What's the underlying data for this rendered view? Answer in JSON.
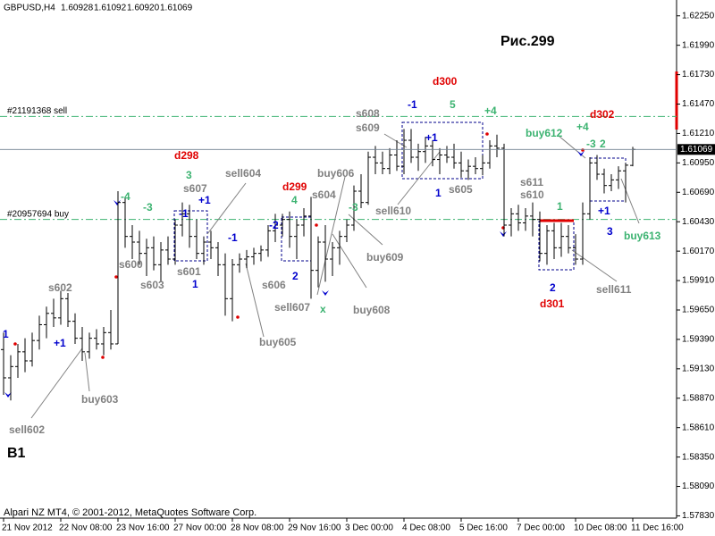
{
  "chart_data": {
    "type": "ohlc",
    "header": {
      "symbol": "GBPUSD,H4",
      "values": [
        "1.60928",
        "1.61092",
        "1.60920",
        "1.61069"
      ]
    },
    "footer": "Alpari NZ MT4, © 2001-2012, MetaQuotes Software Corp.",
    "bar_color": "#000000",
    "categories": [
      "21 Nov 2012",
      null,
      null,
      null,
      null,
      null,
      null,
      null,
      "22 Nov 08:00",
      null,
      null,
      null,
      null,
      null,
      null,
      null,
      "23 Nov 16:00",
      null,
      null,
      null,
      null,
      null,
      null,
      null,
      "27 Nov 00:00",
      null,
      null,
      null,
      null,
      null,
      null,
      null,
      "28 Nov 08:00",
      null,
      null,
      null,
      null,
      null,
      null,
      null,
      "29 Nov 16:00",
      null,
      null,
      null,
      null,
      null,
      null,
      null,
      "3 Dec 00:00",
      null,
      null,
      null,
      null,
      null,
      null,
      null,
      "4 Dec 08:00",
      null,
      null,
      null,
      null,
      null,
      null,
      null,
      "5 Dec 16:00",
      null,
      null,
      null,
      null,
      null,
      null,
      null,
      "7 Dec 00:00",
      null,
      null,
      null,
      null,
      null,
      null,
      null,
      "10 Dec 08:00",
      null,
      null,
      null,
      null,
      null,
      null,
      null,
      "11 Dec 16:00"
    ],
    "open": [
      1.593,
      1.5905,
      1.5915,
      1.5928,
      1.592,
      1.5938,
      1.5952,
      1.5962,
      1.5958,
      1.5975,
      1.5955,
      1.594,
      1.5928,
      1.594,
      1.5935,
      1.5945,
      1.5935,
      1.606,
      1.603,
      1.6025,
      1.6015,
      1.602,
      1.6005,
      1.6018,
      1.601,
      1.604,
      1.605,
      1.603,
      1.6015,
      1.6025,
      1.602,
      1.6005,
      1.5975,
      1.6005,
      1.601,
      1.6012,
      1.6015,
      1.6018,
      1.6035,
      1.604,
      1.6045,
      1.603,
      1.604,
      1.6048,
      1.6,
      1.6025,
      1.601,
      1.602,
      1.603,
      1.604,
      1.607,
      1.606,
      1.61,
      1.6095,
      1.609,
      1.6102,
      1.6092,
      1.6115,
      1.61,
      1.6105,
      1.611,
      1.6098,
      1.6102,
      1.61,
      1.6095,
      1.6088,
      1.6092,
      1.609,
      1.6095,
      1.611,
      1.6108,
      1.604,
      1.605,
      1.6042,
      1.6048,
      1.6045,
      1.6015,
      1.6035,
      1.602,
      1.603,
      1.602,
      1.601,
      1.605,
      1.6095,
      1.6085,
      1.6075,
      1.608,
      1.6088,
      1.60928
    ],
    "high": [
      1.5945,
      1.5925,
      1.5935,
      1.594,
      1.5945,
      1.596,
      1.5968,
      1.5975,
      1.5982,
      1.598,
      1.5962,
      1.595,
      1.5945,
      1.5948,
      1.595,
      1.5965,
      1.607,
      1.6065,
      1.604,
      1.6035,
      1.6028,
      1.603,
      1.6025,
      1.603,
      1.6045,
      1.606,
      1.6058,
      1.6045,
      1.603,
      1.6035,
      1.6025,
      1.6015,
      1.601,
      1.6015,
      1.6018,
      1.602,
      1.6022,
      1.604,
      1.605,
      1.605,
      1.6052,
      1.6045,
      1.6055,
      1.6065,
      1.603,
      1.604,
      1.6025,
      1.6035,
      1.6045,
      1.6075,
      1.6085,
      1.6105,
      1.611,
      1.6105,
      1.6108,
      1.6115,
      1.6125,
      1.6125,
      1.6112,
      1.6118,
      1.6115,
      1.6108,
      1.611,
      1.6112,
      1.6105,
      1.6098,
      1.61,
      1.6102,
      1.6115,
      1.612,
      1.6112,
      1.6055,
      1.6058,
      1.6055,
      1.606,
      1.6052,
      1.604,
      1.6042,
      1.6042,
      1.604,
      1.6032,
      1.606,
      1.61,
      1.6102,
      1.609,
      1.6085,
      1.6092,
      1.6095,
      1.61092
    ],
    "low": [
      1.589,
      1.5885,
      1.5905,
      1.591,
      1.5915,
      1.593,
      1.594,
      1.595,
      1.5952,
      1.595,
      1.5935,
      1.592,
      1.5922,
      1.593,
      1.5925,
      1.593,
      1.5935,
      1.602,
      1.601,
      1.6005,
      1.5995,
      1.6,
      1.599,
      1.6005,
      1.6005,
      1.603,
      1.602,
      1.601,
      1.6005,
      1.601,
      1.5995,
      1.596,
      1.5955,
      1.5998,
      1.6002,
      1.6005,
      1.6008,
      1.6012,
      1.6025,
      1.603,
      1.602,
      1.601,
      1.603,
      1.5975,
      1.5985,
      1.599,
      1.5995,
      1.6005,
      1.6025,
      1.6035,
      1.6055,
      1.6058,
      1.6085,
      1.6085,
      1.6085,
      1.6088,
      1.6085,
      1.6095,
      1.6088,
      1.6095,
      1.6092,
      1.6085,
      1.6095,
      1.609,
      1.6082,
      1.608,
      1.6085,
      1.6084,
      1.609,
      1.61,
      1.603,
      1.603,
      1.6035,
      1.6035,
      1.603,
      1.6008,
      1.6005,
      1.601,
      1.6012,
      1.6015,
      1.6005,
      1.6005,
      1.6045,
      1.608,
      1.6068,
      1.607,
      1.6072,
      1.606,
      1.6092
    ],
    "close": [
      1.5905,
      1.5915,
      1.5928,
      1.592,
      1.5938,
      1.5952,
      1.5962,
      1.5958,
      1.5975,
      1.5955,
      1.594,
      1.5928,
      1.594,
      1.5935,
      1.5945,
      1.5935,
      1.606,
      1.603,
      1.6025,
      1.6015,
      1.602,
      1.6005,
      1.6018,
      1.601,
      1.604,
      1.605,
      1.603,
      1.6015,
      1.6025,
      1.602,
      1.6005,
      1.5975,
      1.6005,
      1.601,
      1.6012,
      1.6015,
      1.6018,
      1.6035,
      1.604,
      1.6045,
      1.603,
      1.604,
      1.6048,
      1.6,
      1.6025,
      1.601,
      1.602,
      1.603,
      1.604,
      1.607,
      1.606,
      1.61,
      1.6095,
      1.609,
      1.6102,
      1.6092,
      1.6115,
      1.61,
      1.6105,
      1.611,
      1.6098,
      1.6102,
      1.61,
      1.6095,
      1.6088,
      1.6092,
      1.609,
      1.6095,
      1.611,
      1.6108,
      1.604,
      1.605,
      1.6042,
      1.6048,
      1.6045,
      1.6015,
      1.6035,
      1.602,
      1.603,
      1.602,
      1.601,
      1.605,
      1.6095,
      1.6085,
      1.6075,
      1.608,
      1.6088,
      1.6093,
      1.61069
    ],
    "ylim": [
      1.5781,
      1.6239
    ],
    "yticks": [
      {
        "value": 1.6225,
        "label": "1.62250"
      },
      {
        "value": 1.6199,
        "label": "1.61990"
      },
      {
        "value": 1.6173,
        "label": "1.61730"
      },
      {
        "value": 1.6147,
        "label": "1.61470"
      },
      {
        "value": 1.6121,
        "label": "1.61210"
      },
      {
        "value": 1.6095,
        "label": "1.60950"
      },
      {
        "value": 1.6069,
        "label": "1.60690"
      },
      {
        "value": 1.6043,
        "label": "1.60430"
      },
      {
        "value": 1.6017,
        "label": "1.60170"
      },
      {
        "value": 1.5991,
        "label": "1.59910"
      },
      {
        "value": 1.5965,
        "label": "1.59650"
      },
      {
        "value": 1.5939,
        "label": "1.59390"
      },
      {
        "value": 1.5913,
        "label": "1.59130"
      },
      {
        "value": 1.5887,
        "label": "1.58870"
      },
      {
        "value": 1.5861,
        "label": "1.58610"
      },
      {
        "value": 1.5835,
        "label": "1.58350"
      },
      {
        "value": 1.5809,
        "label": "1.58090"
      },
      {
        "value": 1.5783,
        "label": "1.57830"
      }
    ],
    "order_lines": [
      {
        "label": "#21191368 sell",
        "value": 1.6136,
        "color": "#3cb371"
      },
      {
        "label": "#20957694 buy",
        "value": 1.6045,
        "color": "#3cb371"
      }
    ],
    "annotations": [
      {
        "text": "Рис.299",
        "color": "#000000"
      },
      {
        "text": "d300",
        "color": "#e00000"
      },
      {
        "text": "d298",
        "color": "#e00000"
      },
      {
        "text": "d299",
        "color": "#e00000"
      },
      {
        "text": "d302",
        "color": "#e00000"
      },
      {
        "text": "d301",
        "color": "#e00000"
      },
      {
        "text": "-1",
        "color": "#0000cd"
      },
      {
        "text": "5",
        "color": "#3cb371"
      },
      {
        "text": "+4",
        "color": "#3cb371"
      },
      {
        "text": "s608",
        "color": "#808080"
      },
      {
        "text": "s609",
        "color": "#808080"
      },
      {
        "text": "+1",
        "color": "#0000cd"
      },
      {
        "text": "buy612",
        "color": "#3cb371"
      },
      {
        "text": "+4",
        "color": "#3cb371"
      },
      {
        "text": "2",
        "color": "#3cb371"
      },
      {
        "text": "-3",
        "color": "#3cb371"
      },
      {
        "text": "3",
        "color": "#3cb371"
      },
      {
        "text": "s607",
        "color": "#808080"
      },
      {
        "text": "+1",
        "color": "#0000cd"
      },
      {
        "text": "sell604",
        "color": "#808080"
      },
      {
        "text": "4",
        "color": "#3cb371"
      },
      {
        "text": "buy606",
        "color": "#808080"
      },
      {
        "text": "s604",
        "color": "#808080"
      },
      {
        "text": "-4",
        "color": "#3cb371"
      },
      {
        "text": "-3",
        "color": "#3cb371"
      },
      {
        "text": "-1",
        "color": "#0000cd"
      },
      {
        "text": "-3",
        "color": "#3cb371"
      },
      {
        "text": "-2",
        "color": "#0000cd"
      },
      {
        "text": "-1",
        "color": "#0000cd"
      },
      {
        "text": "s611",
        "color": "#808080"
      },
      {
        "text": "s610",
        "color": "#808080"
      },
      {
        "text": "1",
        "color": "#3cb371"
      },
      {
        "text": "1",
        "color": "#0000cd"
      },
      {
        "text": "s605",
        "color": "#808080"
      },
      {
        "text": "sell610",
        "color": "#808080"
      },
      {
        "text": "+1",
        "color": "#0000cd"
      },
      {
        "text": "3",
        "color": "#0000cd"
      },
      {
        "text": "buy613",
        "color": "#3cb371"
      },
      {
        "text": "s600",
        "color": "#808080"
      },
      {
        "text": "s601",
        "color": "#808080"
      },
      {
        "text": "s603",
        "color": "#808080"
      },
      {
        "text": "1",
        "color": "#0000cd"
      },
      {
        "text": "buy609",
        "color": "#808080"
      },
      {
        "text": "2",
        "color": "#0000cd"
      },
      {
        "text": "s606",
        "color": "#808080"
      },
      {
        "text": "s602",
        "color": "#808080"
      },
      {
        "text": "sell611",
        "color": "#808080"
      },
      {
        "text": "2",
        "color": "#0000cd"
      },
      {
        "text": "sell607",
        "color": "#808080"
      },
      {
        "text": "x",
        "color": "#3cb371"
      },
      {
        "text": "buy608",
        "color": "#808080"
      },
      {
        "text": "+1",
        "color": "#0000cd"
      },
      {
        "text": "1",
        "color": "#0000cd"
      },
      {
        "text": "buy605",
        "color": "#808080"
      },
      {
        "text": "buy603",
        "color": "#808080"
      },
      {
        "text": "sell602",
        "color": "#808080"
      },
      {
        "text": "B1",
        "color": "#000000"
      }
    ]
  }
}
